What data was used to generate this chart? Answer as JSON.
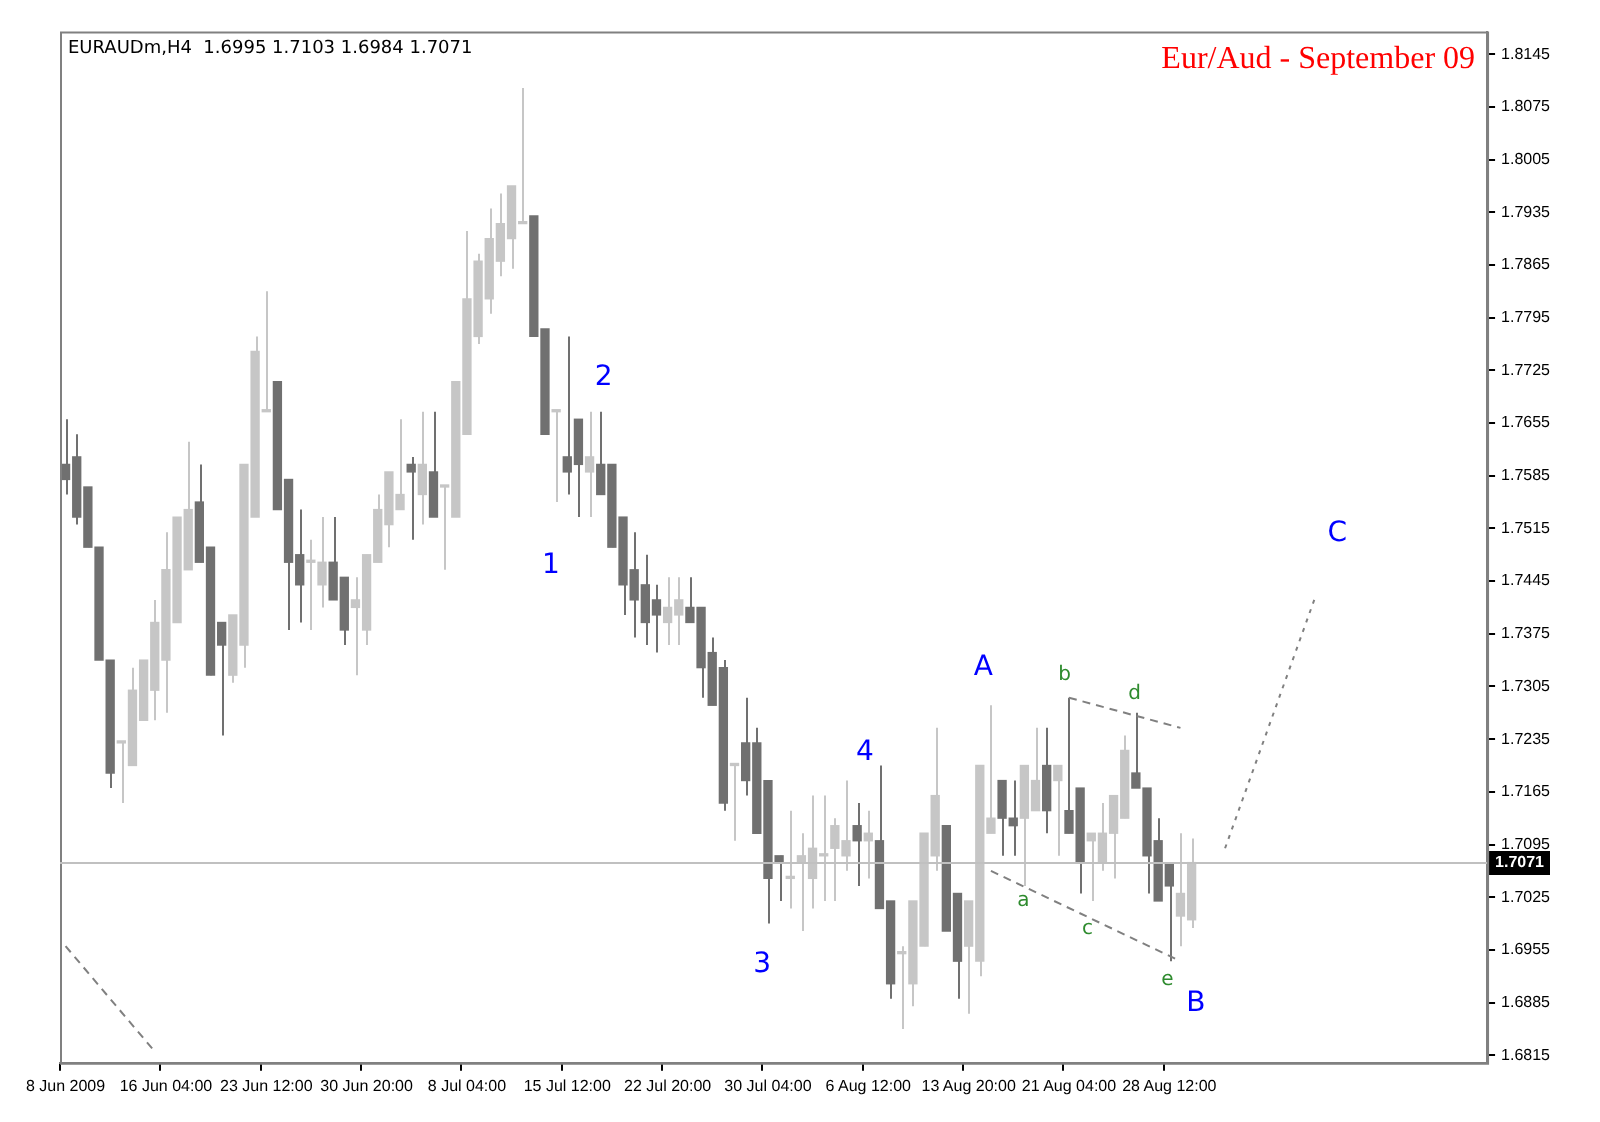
{
  "chart_data": {
    "type": "candlestick",
    "title": "Eur/Aud - September 09",
    "subtitle": "EURAUDm,H4  1.6995 1.7103 1.6984 1.7071",
    "categories": [
      "8 Jun 2009",
      null,
      null,
      null,
      null,
      null,
      null,
      null,
      null,
      "16 Jun 04:00",
      null,
      null,
      null,
      null,
      null,
      null,
      null,
      null,
      "23 Jun 12:00",
      null,
      null,
      null,
      null,
      null,
      null,
      null,
      null,
      "30 Jun 20:00",
      null,
      null,
      null,
      null,
      null,
      null,
      null,
      null,
      "8 Jul 04:00",
      null,
      null,
      null,
      null,
      null,
      null,
      null,
      null,
      "15 Jul 12:00",
      null,
      null,
      null,
      null,
      null,
      null,
      null,
      null,
      "22 Jul 20:00",
      null,
      null,
      null,
      null,
      null,
      null,
      null,
      null,
      "30 Jul 04:00",
      null,
      null,
      null,
      null,
      null,
      null,
      null,
      null,
      "6 Aug 12:00",
      null,
      null,
      null,
      null,
      null,
      null,
      null,
      null,
      "13 Aug 20:00",
      null,
      null,
      null,
      null,
      null,
      null,
      null,
      null,
      "21 Aug 04:00",
      null,
      null,
      null,
      null,
      null,
      null,
      null,
      null,
      "28 Aug 12:00",
      null,
      null,
      null,
      null,
      null,
      null,
      null,
      null,
      null,
      null,
      null,
      null,
      null,
      null,
      null,
      null,
      null,
      null,
      null,
      null,
      null,
      null,
      null,
      null,
      null,
      null,
      null,
      null
    ],
    "colors": [
      "#707070",
      "#707070",
      "#707070",
      "#707070",
      "#707070",
      "#c6c6c6",
      "#c6c6c6",
      "#c6c6c6",
      "#c6c6c6",
      "#c6c6c6",
      "#c6c6c6",
      "#c6c6c6",
      "#707070",
      "#707070",
      "#707070",
      "#c6c6c6",
      "#c6c6c6",
      "#c6c6c6",
      "#c6c6c6",
      "#707070",
      "#707070",
      "#707070",
      "#c6c6c6",
      "#c6c6c6",
      "#707070",
      "#707070",
      "#c6c6c6",
      "#c6c6c6",
      "#c6c6c6",
      "#c6c6c6",
      "#c6c6c6",
      "#707070",
      "#c6c6c6",
      "#707070",
      "#c6c6c6",
      "#c6c6c6",
      "#c6c6c6",
      "#c6c6c6",
      "#c6c6c6",
      "#c6c6c6",
      "#c6c6c6",
      "#c6c6c6",
      "#707070",
      "#707070",
      "#c6c6c6",
      "#707070",
      "#707070",
      "#c6c6c6",
      "#707070",
      "#707070",
      "#707070",
      "#707070",
      "#707070",
      "#707070",
      "#c6c6c6",
      "#c6c6c6",
      "#707070",
      "#707070",
      "#707070",
      "#707070",
      "#c6c6c6",
      "#707070",
      "#707070",
      "#707070",
      "#707070",
      "#c6c6c6",
      "#c6c6c6",
      "#c6c6c6",
      "#c6c6c6",
      "#c6c6c6",
      "#c6c6c6",
      "#707070",
      "#c6c6c6",
      "#707070",
      "#707070",
      "#c6c6c6",
      "#c6c6c6",
      "#c6c6c6",
      "#c6c6c6",
      "#707070",
      "#707070",
      "#c6c6c6",
      "#c6c6c6",
      "#c6c6c6",
      "#707070",
      "#707070",
      "#c6c6c6",
      "#c6c6c6",
      "#707070",
      "#c6c6c6",
      "#707070",
      "#707070",
      "#c6c6c6",
      "#c6c6c6",
      "#c6c6c6",
      "#c6c6c6",
      "#707070",
      "#707070",
      "#707070",
      "#707070",
      "#c6c6c6",
      "#c6c6c6",
      null,
      null,
      null,
      null,
      null,
      null,
      null,
      null,
      null,
      null,
      null,
      null,
      null,
      null,
      null,
      null,
      null,
      null,
      null,
      null,
      null,
      null,
      null,
      null,
      null,
      null
    ],
    "ohlc": [
      [
        1.76,
        1.766,
        1.756,
        1.758
      ],
      [
        1.761,
        1.764,
        1.752,
        1.753
      ],
      [
        1.757,
        1.757,
        1.749,
        1.749
      ],
      [
        1.749,
        1.749,
        1.734,
        1.734
      ],
      [
        1.734,
        1.734,
        1.717,
        1.719
      ],
      [
        1.723,
        1.723,
        1.715,
        1.723
      ],
      [
        1.72,
        1.733,
        1.72,
        1.73
      ],
      [
        1.726,
        1.734,
        1.726,
        1.734
      ],
      [
        1.73,
        1.742,
        1.726,
        1.739
      ],
      [
        1.734,
        1.751,
        1.727,
        1.746
      ],
      [
        1.739,
        1.753,
        1.739,
        1.753
      ],
      [
        1.746,
        1.763,
        1.746,
        1.754
      ],
      [
        1.755,
        1.76,
        1.747,
        1.747
      ],
      [
        1.749,
        1.749,
        1.732,
        1.732
      ],
      [
        1.739,
        1.739,
        1.724,
        1.736
      ],
      [
        1.732,
        1.74,
        1.731,
        1.74
      ],
      [
        1.736,
        1.76,
        1.733,
        1.76
      ],
      [
        1.753,
        1.777,
        1.753,
        1.775
      ],
      [
        1.767,
        1.783,
        1.767,
        1.767
      ],
      [
        1.771,
        1.771,
        1.754,
        1.754
      ],
      [
        1.758,
        1.758,
        1.738,
        1.747
      ],
      [
        1.748,
        1.754,
        1.739,
        1.744
      ],
      [
        1.747,
        1.75,
        1.738,
        1.747
      ],
      [
        1.744,
        1.753,
        1.741,
        1.747
      ],
      [
        1.747,
        1.753,
        1.742,
        1.742
      ],
      [
        1.745,
        1.745,
        1.736,
        1.738
      ],
      [
        1.741,
        1.745,
        1.732,
        1.742
      ],
      [
        1.738,
        1.748,
        1.736,
        1.748
      ],
      [
        1.747,
        1.756,
        1.747,
        1.754
      ],
      [
        1.752,
        1.759,
        1.749,
        1.759
      ],
      [
        1.754,
        1.766,
        1.754,
        1.756
      ],
      [
        1.76,
        1.761,
        1.75,
        1.759
      ],
      [
        1.756,
        1.767,
        1.752,
        1.76
      ],
      [
        1.759,
        1.767,
        1.753,
        1.753
      ],
      [
        1.757,
        1.757,
        1.746,
        1.757
      ],
      [
        1.753,
        1.771,
        1.753,
        1.771
      ],
      [
        1.764,
        1.791,
        1.764,
        1.782
      ],
      [
        1.777,
        1.788,
        1.776,
        1.787
      ],
      [
        1.782,
        1.794,
        1.78,
        1.79
      ],
      [
        1.787,
        1.796,
        1.785,
        1.792
      ],
      [
        1.79,
        1.797,
        1.786,
        1.797
      ],
      [
        1.792,
        1.81,
        1.792,
        1.792
      ],
      [
        1.793,
        1.793,
        1.777,
        1.777
      ],
      [
        1.778,
        1.778,
        1.764,
        1.764
      ],
      [
        1.767,
        1.767,
        1.755,
        1.767
      ],
      [
        1.761,
        1.777,
        1.756,
        1.759
      ],
      [
        1.766,
        1.766,
        1.753,
        1.76
      ],
      [
        1.759,
        1.767,
        1.753,
        1.761
      ],
      [
        1.76,
        1.767,
        1.756,
        1.756
      ],
      [
        1.76,
        1.76,
        1.749,
        1.749
      ],
      [
        1.753,
        1.753,
        1.74,
        1.744
      ],
      [
        1.746,
        1.751,
        1.737,
        1.742
      ],
      [
        1.744,
        1.748,
        1.736,
        1.739
      ],
      [
        1.742,
        1.744,
        1.735,
        1.74
      ],
      [
        1.739,
        1.745,
        1.736,
        1.741
      ],
      [
        1.74,
        1.745,
        1.736,
        1.742
      ],
      [
        1.741,
        1.745,
        1.739,
        1.739
      ],
      [
        1.741,
        1.741,
        1.729,
        1.733
      ],
      [
        1.735,
        1.737,
        1.728,
        1.728
      ],
      [
        1.733,
        1.734,
        1.714,
        1.715
      ],
      [
        1.72,
        1.72,
        1.71,
        1.72
      ],
      [
        1.723,
        1.729,
        1.716,
        1.718
      ],
      [
        1.723,
        1.725,
        1.711,
        1.711
      ],
      [
        1.718,
        1.718,
        1.699,
        1.705
      ],
      [
        1.708,
        1.708,
        1.702,
        1.707
      ],
      [
        1.705,
        1.714,
        1.701,
        1.705
      ],
      [
        1.707,
        1.711,
        1.698,
        1.708
      ],
      [
        1.705,
        1.716,
        1.701,
        1.709
      ],
      [
        1.708,
        1.716,
        1.702,
        1.708
      ],
      [
        1.709,
        1.713,
        1.702,
        1.712
      ],
      [
        1.708,
        1.718,
        1.706,
        1.71
      ],
      [
        1.712,
        1.715,
        1.704,
        1.71
      ],
      [
        1.71,
        1.714,
        1.705,
        1.711
      ],
      [
        1.71,
        1.72,
        1.701,
        1.701
      ],
      [
        1.702,
        1.702,
        1.689,
        1.691
      ],
      [
        1.695,
        1.696,
        1.685,
        1.695
      ],
      [
        1.691,
        1.702,
        1.688,
        1.702
      ],
      [
        1.696,
        1.711,
        1.696,
        1.711
      ],
      [
        1.708,
        1.725,
        1.706,
        1.716
      ],
      [
        1.712,
        1.712,
        1.698,
        1.698
      ],
      [
        1.703,
        1.703,
        1.689,
        1.694
      ],
      [
        1.696,
        1.702,
        1.687,
        1.702
      ],
      [
        1.694,
        1.72,
        1.692,
        1.72
      ],
      [
        1.711,
        1.728,
        1.711,
        1.713
      ],
      [
        1.718,
        1.718,
        1.708,
        1.713
      ],
      [
        1.713,
        1.718,
        1.708,
        1.712
      ],
      [
        1.713,
        1.72,
        1.704,
        1.72
      ],
      [
        1.714,
        1.725,
        1.714,
        1.718
      ],
      [
        1.72,
        1.725,
        1.711,
        1.714
      ],
      [
        1.718,
        1.72,
        1.708,
        1.72
      ],
      [
        1.714,
        1.729,
        1.711,
        1.711
      ],
      [
        1.717,
        1.717,
        1.703,
        1.707
      ],
      [
        1.71,
        1.711,
        1.702,
        1.711
      ],
      [
        1.707,
        1.715,
        1.706,
        1.711
      ],
      [
        1.711,
        1.716,
        1.705,
        1.716
      ],
      [
        1.713,
        1.724,
        1.713,
        1.722
      ],
      [
        1.719,
        1.727,
        1.717,
        1.717
      ],
      [
        1.717,
        1.717,
        1.703,
        1.708
      ],
      [
        1.71,
        1.713,
        1.702,
        1.702
      ],
      [
        1.707,
        1.707,
        1.694,
        1.704
      ],
      [
        1.7,
        1.711,
        1.696,
        1.703
      ],
      [
        1.6995,
        1.7103,
        1.6984,
        1.7071
      ],
      null,
      null,
      null,
      null,
      null,
      null,
      null,
      null,
      null,
      null,
      null,
      null,
      null,
      null,
      null,
      null,
      null,
      null,
      null,
      null,
      null,
      null,
      null,
      null,
      null,
      null
    ],
    "series": [
      {
        "type": "line",
        "color": "#808080",
        "line_style": "dashed",
        "values": [
          1.696,
          null,
          null,
          null,
          null,
          null,
          null,
          null,
          1.682,
          null,
          null,
          null,
          null,
          null,
          null,
          null,
          null,
          null,
          null,
          null,
          null,
          null,
          null,
          null,
          null,
          null,
          null,
          null,
          null,
          null,
          null,
          null,
          null,
          null,
          null,
          null,
          null,
          null,
          null,
          null,
          null,
          null,
          null,
          null,
          null,
          null,
          null,
          null,
          null,
          null,
          null,
          null,
          null,
          null,
          null,
          null,
          null,
          null,
          null,
          null,
          null,
          null,
          null,
          null,
          null,
          null,
          null,
          null,
          null,
          null,
          null,
          null,
          null,
          null,
          null,
          null,
          null,
          null,
          null,
          null,
          null,
          null,
          null,
          null,
          null,
          null,
          null,
          null,
          null,
          null,
          null,
          null,
          null,
          null,
          null,
          null,
          null,
          null,
          null,
          null,
          null,
          null,
          null,
          null,
          null,
          null,
          null,
          null,
          null,
          null,
          null,
          null,
          null,
          null,
          null,
          null,
          null,
          null,
          null,
          null,
          null,
          null,
          null,
          null,
          null,
          null,
          null,
          null
        ]
      },
      {
        "type": "line",
        "color": "#808080",
        "line_style": "dashed",
        "values": [
          null,
          null,
          null,
          null,
          null,
          null,
          null,
          null,
          null,
          null,
          null,
          null,
          null,
          null,
          null,
          null,
          null,
          null,
          null,
          null,
          null,
          null,
          null,
          null,
          null,
          null,
          null,
          null,
          null,
          null,
          null,
          null,
          null,
          null,
          null,
          null,
          null,
          null,
          null,
          null,
          null,
          null,
          null,
          null,
          null,
          null,
          null,
          null,
          null,
          null,
          null,
          null,
          null,
          null,
          null,
          null,
          null,
          null,
          null,
          null,
          null,
          null,
          null,
          null,
          null,
          null,
          null,
          null,
          null,
          null,
          null,
          null,
          null,
          null,
          null,
          null,
          null,
          null,
          null,
          null,
          null,
          null,
          null,
          1.706,
          null,
          null,
          null,
          null,
          null,
          null,
          null,
          null,
          null,
          null,
          null,
          null,
          null,
          null,
          null,
          null,
          1.694,
          null,
          null,
          null,
          null,
          null,
          null,
          null,
          null,
          null,
          null,
          null,
          null,
          null,
          null,
          null,
          null,
          null,
          null,
          null,
          null,
          null,
          null,
          null,
          null,
          null,
          null,
          null
        ]
      },
      {
        "type": "line",
        "color": "#808080",
        "line_style": "dashed",
        "values": [
          null,
          null,
          null,
          null,
          null,
          null,
          null,
          null,
          null,
          null,
          null,
          null,
          null,
          null,
          null,
          null,
          null,
          null,
          null,
          null,
          null,
          null,
          null,
          null,
          null,
          null,
          null,
          null,
          null,
          null,
          null,
          null,
          null,
          null,
          null,
          null,
          null,
          null,
          null,
          null,
          null,
          null,
          null,
          null,
          null,
          null,
          null,
          null,
          null,
          null,
          null,
          null,
          null,
          null,
          null,
          null,
          null,
          null,
          null,
          null,
          null,
          null,
          null,
          null,
          null,
          null,
          null,
          null,
          null,
          null,
          null,
          null,
          null,
          null,
          null,
          null,
          null,
          null,
          null,
          null,
          null,
          null,
          null,
          null,
          null,
          null,
          null,
          null,
          null,
          null,
          1.729,
          null,
          null,
          null,
          null,
          null,
          null,
          null,
          null,
          null,
          1.725,
          null,
          null,
          null,
          null,
          null,
          null,
          null,
          null,
          null,
          null,
          null,
          null,
          null,
          null,
          null,
          null,
          null,
          null,
          null,
          null,
          null,
          null,
          null,
          null,
          null,
          null,
          null
        ]
      },
      {
        "type": "line",
        "color": "#808080",
        "line_style": "dotted",
        "values": [
          null,
          null,
          null,
          null,
          null,
          null,
          null,
          null,
          null,
          null,
          null,
          null,
          null,
          null,
          null,
          null,
          null,
          null,
          null,
          null,
          null,
          null,
          null,
          null,
          null,
          null,
          null,
          null,
          null,
          null,
          null,
          null,
          null,
          null,
          null,
          null,
          null,
          null,
          null,
          null,
          null,
          null,
          null,
          null,
          null,
          null,
          null,
          null,
          null,
          null,
          null,
          null,
          null,
          null,
          null,
          null,
          null,
          null,
          null,
          null,
          null,
          null,
          null,
          null,
          null,
          null,
          null,
          null,
          null,
          null,
          null,
          null,
          null,
          null,
          null,
          null,
          null,
          null,
          null,
          null,
          null,
          null,
          null,
          null,
          null,
          null,
          null,
          null,
          null,
          null,
          null,
          null,
          null,
          null,
          null,
          null,
          null,
          null,
          null,
          null,
          null,
          null,
          null,
          null,
          1.709,
          null,
          null,
          null,
          null,
          null,
          null,
          null,
          1.742,
          null,
          null,
          null,
          null,
          null,
          null,
          null,
          null,
          null,
          null,
          null,
          null,
          null,
          null,
          null
        ]
      }
    ],
    "ylim": [
      1.6805,
      1.8175
    ],
    "yticks": [
      1.6815,
      1.6885,
      1.6955,
      1.7025,
      1.7095,
      1.7165,
      1.7235,
      1.7305,
      1.7375,
      1.7445,
      1.7515,
      1.7585,
      1.7655,
      1.7725,
      1.7795,
      1.7865,
      1.7935,
      1.8005,
      1.8075,
      1.8145
    ],
    "ref_lines": [
      {
        "axis": "y",
        "value": 1.7071,
        "label": "1.7071",
        "color": "#c0c0c0"
      }
    ],
    "annotations": [
      {
        "text": "1",
        "y": 1.755
      },
      {
        "text": "2",
        "y": 1.767
      },
      {
        "text": "3",
        "y": 1.699
      },
      "4",
      {
        "text": "A",
        "y": 1.728
      },
      "B",
      "C",
      {
        "text": "a",
        "y": 1.706
      },
      {
        "text": "b",
        "y": 1.729
      },
      {
        "text": "c",
        "y": 1.703
      },
      {
        "text": "d",
        "y": 1.727
      },
      {
        "text": "e",
        "y": 1.694
      }
    ]
  }
}
